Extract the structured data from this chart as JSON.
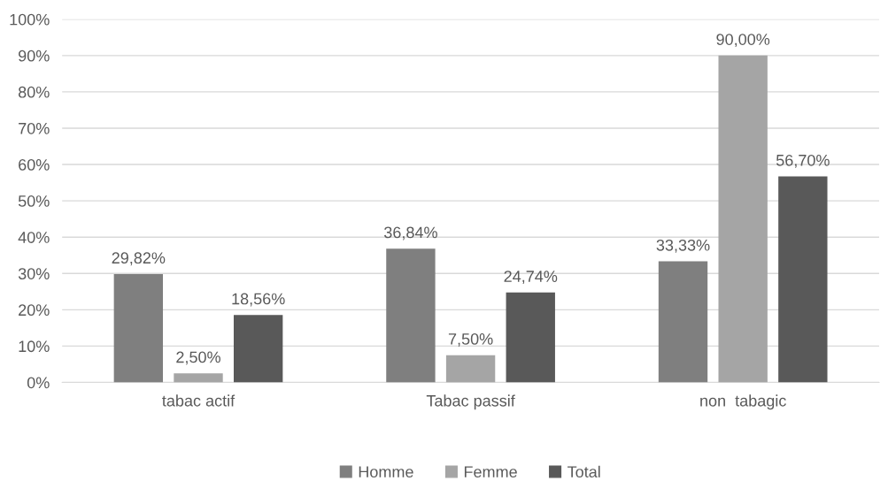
{
  "chart_data": {
    "type": "bar",
    "categories": [
      "tabac actif",
      "Tabac passif",
      "non  tabagic"
    ],
    "series": [
      {
        "name": "Homme",
        "color": "#7f7f7f",
        "values": [
          29.82,
          36.84,
          33.33
        ],
        "value_labels": [
          "29,82%",
          "36,84%",
          "33,33%"
        ]
      },
      {
        "name": "Femme",
        "color": "#a5a5a5",
        "values": [
          2.5,
          7.5,
          90.0
        ],
        "value_labels": [
          "2,50%",
          "7,50%",
          "90,00%"
        ]
      },
      {
        "name": "Total",
        "color": "#595959",
        "values": [
          18.56,
          24.74,
          56.7
        ],
        "value_labels": [
          "18,56%",
          "24,74%",
          "56,70%"
        ]
      }
    ],
    "ylim": [
      0,
      100
    ],
    "yticks": [
      {
        "value": 0,
        "label": "0%"
      },
      {
        "value": 10,
        "label": "10%"
      },
      {
        "value": 20,
        "label": "20%"
      },
      {
        "value": 30,
        "label": "30%"
      },
      {
        "value": 40,
        "label": "40%"
      },
      {
        "value": 50,
        "label": "50%"
      },
      {
        "value": 60,
        "label": "60%"
      },
      {
        "value": 70,
        "label": "70%"
      },
      {
        "value": 80,
        "label": "80%"
      },
      {
        "value": 90,
        "label": "90%"
      },
      {
        "value": 100,
        "label": "100%"
      }
    ],
    "grid": "y",
    "legend": "bottom"
  }
}
